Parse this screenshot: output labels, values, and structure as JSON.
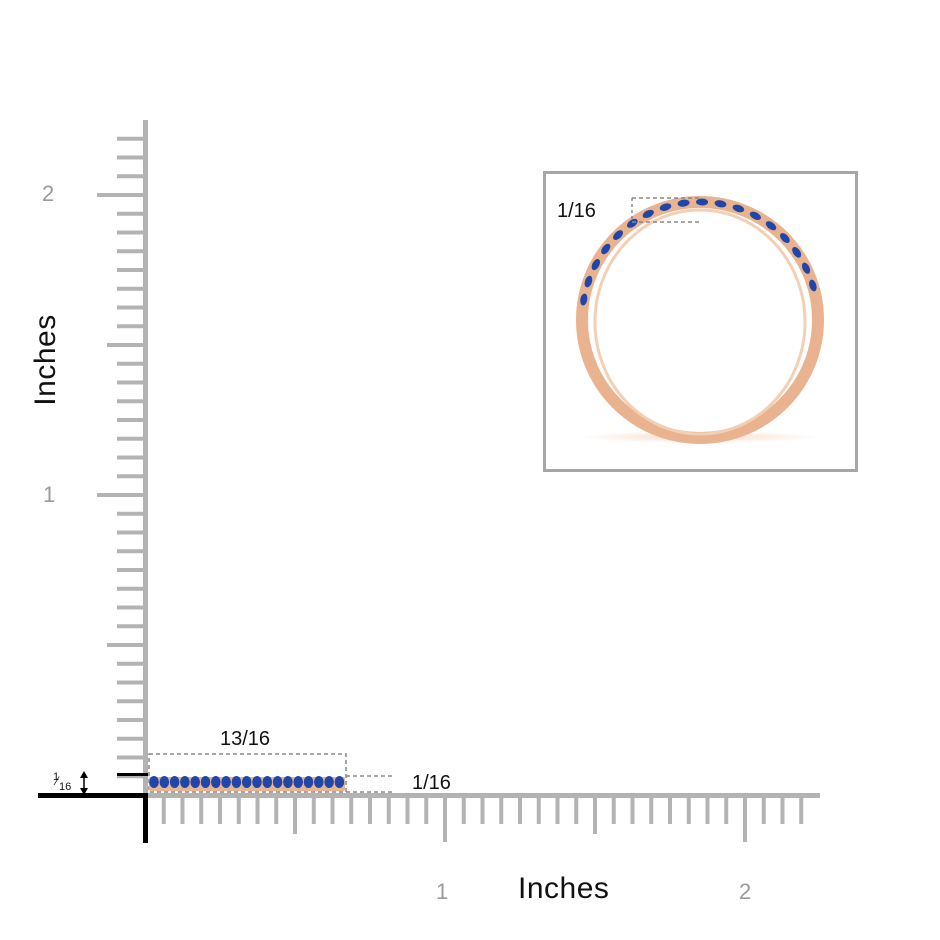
{
  "y_axis": {
    "title": "Inches",
    "ticks": [
      "1",
      "2"
    ]
  },
  "x_axis": {
    "title": "Inches",
    "ticks": [
      "1",
      "2"
    ]
  },
  "dimensions": {
    "band_length": "13/16",
    "band_height": "1/16",
    "side_marker_num": "1",
    "side_marker_den": "16",
    "inset_width": "1/16"
  },
  "colors": {
    "ruler": "#b3b3b3",
    "ruler_origin": "#000000",
    "band_gold": "#eab38f",
    "stone_blue": "#1f46a8",
    "inset_frame": "#a6a6a6"
  },
  "icons": {
    "side_marker": "double-arrow-icon"
  }
}
